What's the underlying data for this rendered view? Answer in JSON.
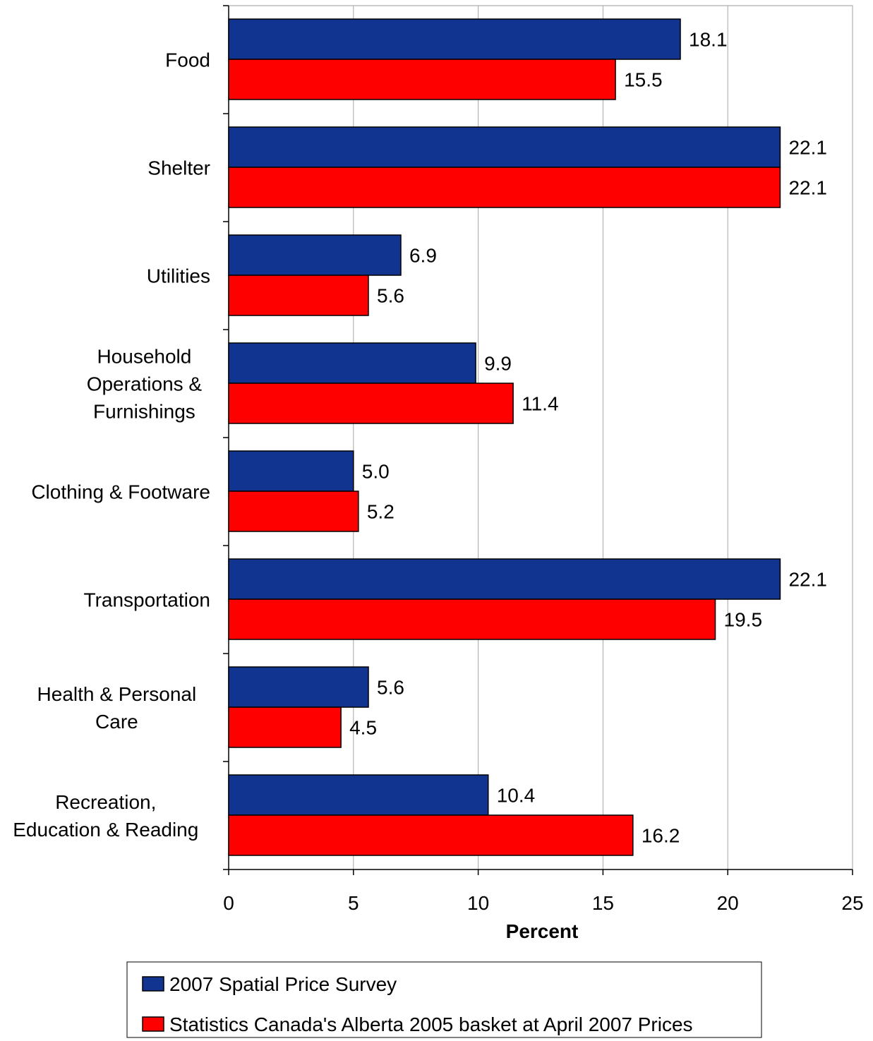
{
  "chart_data": {
    "type": "bar",
    "orientation": "horizontal",
    "categories": [
      [
        "Food"
      ],
      [
        "Shelter"
      ],
      [
        "Utilities"
      ],
      [
        "Household",
        "Operations &",
        "Furnishings"
      ],
      [
        "Clothing & Footware"
      ],
      [
        "Transportation"
      ],
      [
        "Health & Personal",
        "Care"
      ],
      [
        "Recreation,",
        "Education & Reading"
      ]
    ],
    "series": [
      {
        "name": "2007 Spatial Price Survey",
        "color": "#10348f",
        "values": [
          18.1,
          22.1,
          6.9,
          9.9,
          5.0,
          22.1,
          5.6,
          10.4
        ],
        "labels": [
          "18.1",
          "22.1",
          "6.9",
          "9.9",
          "5.0",
          "22.1",
          "5.6",
          "10.4"
        ]
      },
      {
        "name": "Statistics Canada's Alberta 2005 basket at April 2007 Prices",
        "color": "#ff0000",
        "values": [
          15.5,
          22.1,
          5.6,
          11.4,
          5.2,
          19.5,
          4.5,
          16.2
        ],
        "labels": [
          "15.5",
          "22.1",
          "5.6",
          "11.4",
          "5.2",
          "19.5",
          "4.5",
          "16.2"
        ]
      }
    ],
    "xlabel": "Percent",
    "xlim": [
      0,
      25
    ],
    "xticks": [
      "0",
      "5",
      "10",
      "15",
      "20",
      "25"
    ],
    "xtick_values": [
      0,
      5,
      10,
      15,
      20,
      25
    ],
    "grid": "vertical",
    "legend": "bottom"
  }
}
